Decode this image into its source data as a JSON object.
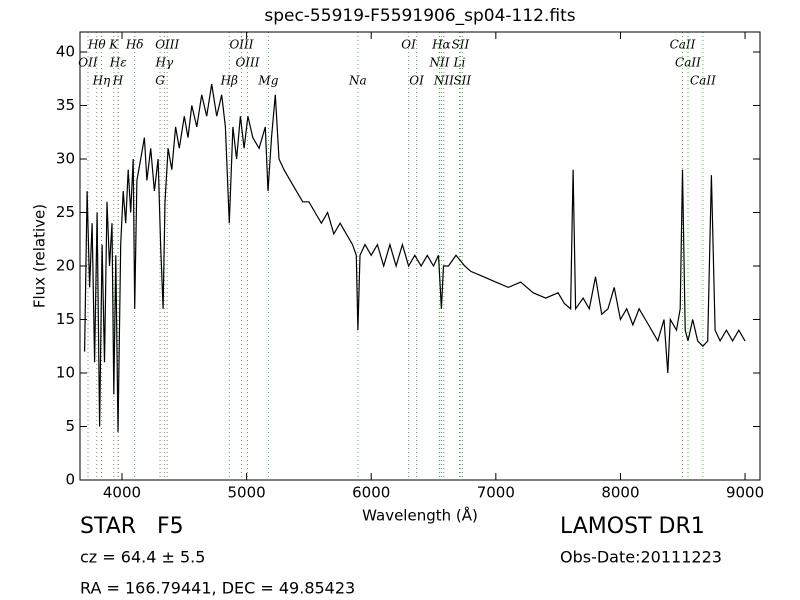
{
  "chart_data": {
    "type": "line",
    "title": "spec-55919-F5591906_sp04-112.fits",
    "x_label": "Wavelength (Å)",
    "y_label": "Flux (relative)",
    "xlim": [
      3663,
      9120
    ],
    "ylim": [
      0,
      41.87
    ],
    "xticks": [
      4000,
      5000,
      6000,
      7000,
      8000,
      9000
    ],
    "yticks": [
      0,
      5,
      10,
      15,
      20,
      25,
      30,
      35,
      40
    ],
    "color": "#000000",
    "line_color": "#55aa55",
    "x": [
      3700,
      3720,
      3740,
      3760,
      3780,
      3800,
      3820,
      3840,
      3860,
      3880,
      3900,
      3920,
      3934,
      3950,
      3968,
      3990,
      4010,
      4030,
      4050,
      4070,
      4090,
      4102,
      4120,
      4150,
      4180,
      4200,
      4230,
      4260,
      4290,
      4310,
      4330,
      4345,
      4370,
      4400,
      4430,
      4460,
      4500,
      4530,
      4560,
      4600,
      4640,
      4680,
      4720,
      4760,
      4800,
      4830,
      4861,
      4890,
      4920,
      4950,
      4980,
      5010,
      5050,
      5100,
      5150,
      5172,
      5200,
      5230,
      5260,
      5300,
      5350,
      5400,
      5450,
      5500,
      5550,
      5600,
      5650,
      5700,
      5750,
      5800,
      5850,
      5880,
      5893,
      5910,
      5950,
      6000,
      6050,
      6100,
      6150,
      6200,
      6250,
      6300,
      6350,
      6400,
      6450,
      6500,
      6540,
      6563,
      6580,
      6620,
      6680,
      6750,
      6800,
      6900,
      7000,
      7100,
      7200,
      7300,
      7400,
      7500,
      7550,
      7600,
      7620,
      7640,
      7700,
      7750,
      7800,
      7850,
      7900,
      7950,
      8000,
      8050,
      8100,
      8150,
      8200,
      8250,
      8300,
      8350,
      8380,
      8400,
      8450,
      8480,
      8498,
      8520,
      8542,
      8580,
      8620,
      8662,
      8700,
      8730,
      8760,
      8800,
      8850,
      8900,
      8950,
      9000
    ],
    "values": [
      12,
      27,
      18,
      24,
      11,
      25,
      5,
      22,
      11,
      26,
      20,
      24,
      8,
      21,
      4.5,
      22,
      27,
      24,
      29,
      25,
      30,
      16,
      28,
      30,
      32,
      28,
      31,
      27,
      30,
      22,
      16,
      26,
      31,
      29,
      33,
      31,
      34,
      32,
      35,
      33,
      36,
      34,
      37,
      34,
      36,
      33,
      24,
      33,
      30,
      34,
      31,
      34,
      32,
      31,
      33,
      27,
      32,
      36,
      30,
      29,
      28,
      27,
      26,
      26,
      25,
      24,
      25,
      23,
      24,
      23,
      22,
      21,
      14,
      21,
      22,
      21,
      22,
      20,
      22,
      20,
      22,
      20,
      21,
      20,
      21,
      20,
      21,
      16,
      20,
      20,
      21,
      20,
      19.5,
      19,
      18.5,
      18,
      18.5,
      17.5,
      17,
      17.5,
      16.5,
      16,
      29,
      16,
      17,
      16,
      19,
      15.5,
      16,
      18,
      15,
      16,
      14.5,
      16,
      15,
      14,
      13,
      15,
      10,
      15,
      14,
      16,
      29,
      14,
      13,
      15,
      13,
      12.5,
      13,
      28.5,
      14,
      13,
      14,
      13,
      14,
      13
    ],
    "spectral_lines": {
      "upper": [
        {
          "name": "Hθ",
          "x": 3798
        },
        {
          "name": "K",
          "x": 3934
        },
        {
          "name": "Hδ",
          "x": 4102
        },
        {
          "name": "OIII",
          "x": 4363
        },
        {
          "name": "OIII",
          "x": 4959
        },
        {
          "name": "OI",
          "x": 6300
        },
        {
          "name": "Hα",
          "x": 6563
        },
        {
          "name": "SII",
          "x": 6716
        },
        {
          "name": "CaII",
          "x": 8498
        }
      ],
      "middle": [
        {
          "name": "OII",
          "x": 3727
        },
        {
          "name": "Hε",
          "x": 3970
        },
        {
          "name": "Hγ",
          "x": 4340
        },
        {
          "name": "OIII",
          "x": 5007
        },
        {
          "name": "NII",
          "x": 6548
        },
        {
          "name": "Li",
          "x": 6708
        },
        {
          "name": "CaII",
          "x": 8542
        }
      ],
      "lower": [
        {
          "name": "Hη",
          "x": 3835
        },
        {
          "name": "H",
          "x": 3968
        },
        {
          "name": "G",
          "x": 4305
        },
        {
          "name": "Hβ",
          "x": 4861
        },
        {
          "name": "Mg",
          "x": 5175
        },
        {
          "name": "Na",
          "x": 5893
        },
        {
          "name": "OI",
          "x": 6364
        },
        {
          "name": "NII",
          "x": 6583
        },
        {
          "name": "SII",
          "x": 6731
        },
        {
          "name": "CaII",
          "x": 8662
        }
      ]
    },
    "info": {
      "object": "STAR   F5",
      "redshift": "cz = 64.4 ± 5.5",
      "coordinates": "RA = 166.79441, DEC = 49.85423",
      "survey": "LAMOST DR1",
      "obs_date": "Obs-Date:20111223"
    }
  }
}
